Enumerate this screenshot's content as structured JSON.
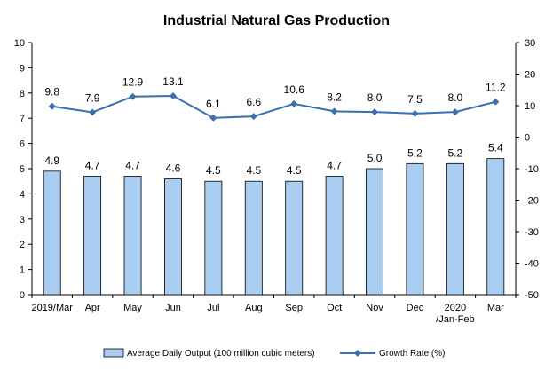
{
  "chart_data": {
    "type": "bar",
    "title": "Industrial Natural Gas Production",
    "categories": [
      "2019/Mar",
      "Apr",
      "May",
      "Jun",
      "Jul",
      "Aug",
      "Sep",
      "Oct",
      "Nov",
      "Dec",
      "2020\n/Jan-Feb",
      "Mar"
    ],
    "series": [
      {
        "name": "Average Daily Output (100 million cubic meters)",
        "type": "bar",
        "axis": "left",
        "values": [
          4.9,
          4.7,
          4.7,
          4.6,
          4.5,
          4.5,
          4.5,
          4.7,
          5.0,
          5.2,
          5.2,
          5.4
        ],
        "color": "#a9cdf1"
      },
      {
        "name": "Growth Rate (%)",
        "type": "line",
        "axis": "right",
        "values": [
          9.8,
          7.9,
          12.9,
          13.1,
          6.1,
          6.6,
          10.6,
          8.2,
          8.0,
          7.5,
          8.0,
          11.2
        ],
        "color": "#3a6fb0"
      }
    ],
    "y_left": {
      "min": 0,
      "max": 10,
      "step": 1,
      "ticks": [
        "0",
        "1",
        "2",
        "3",
        "4",
        "5",
        "6",
        "7",
        "8",
        "9",
        "10"
      ]
    },
    "y_right": {
      "min": -50,
      "max": 30,
      "step": 10,
      "ticks": [
        "-50",
        "-40",
        "-30",
        "-20",
        "-10",
        "0",
        "10",
        "20",
        "30"
      ]
    },
    "grid": false,
    "legend_position": "bottom"
  }
}
